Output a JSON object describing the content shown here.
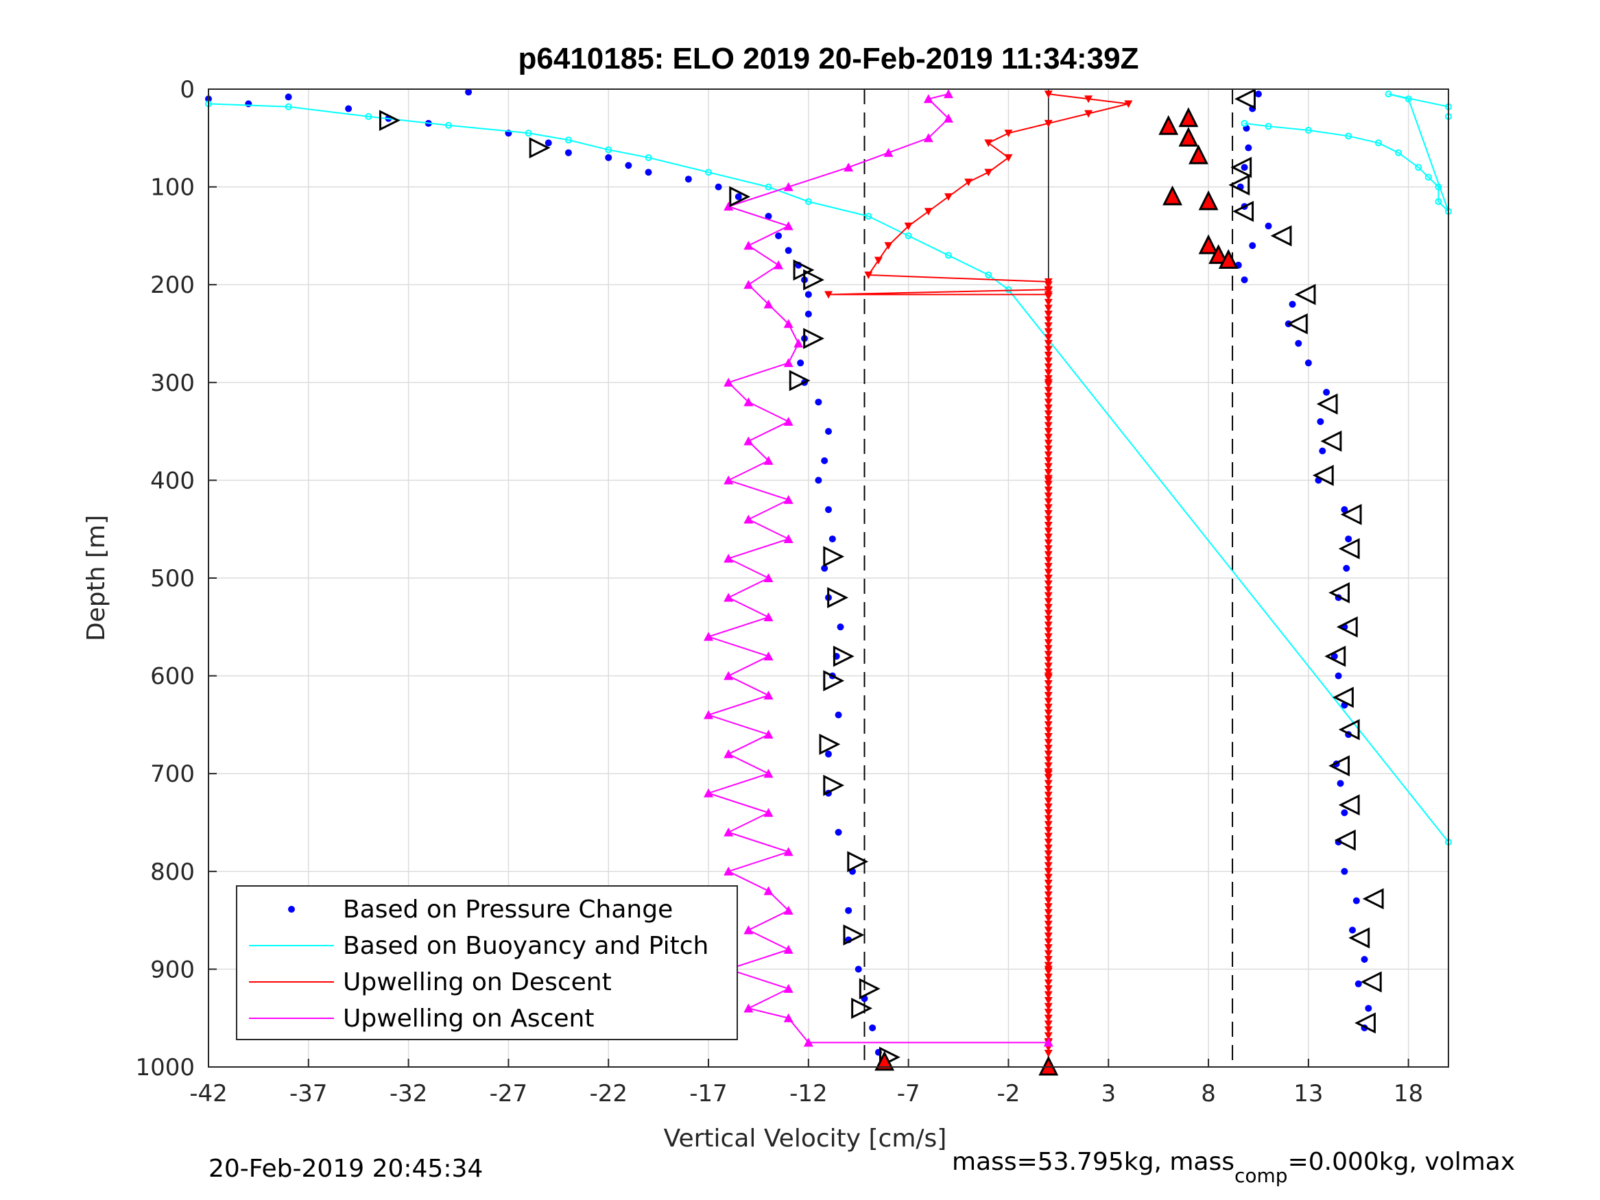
{
  "chart_data": {
    "type": "scatter",
    "title": "p6410185: ELO 2019 20-Feb-2019 11:34:39Z",
    "xlabel": "Vertical Velocity [cm/s]",
    "ylabel": "Depth [m]",
    "xlim": [
      -42,
      20
    ],
    "ylim": [
      0,
      1000
    ],
    "y_reversed": true,
    "grid": true,
    "xticks": [
      "-42",
      "-37",
      "-32",
      "-27",
      "-22",
      "-17",
      "-12",
      "-7",
      "-2",
      "3",
      "8",
      "13",
      "18"
    ],
    "yticks": [
      "0",
      "100",
      "200",
      "300",
      "400",
      "500",
      "600",
      "700",
      "800",
      "900",
      "1000"
    ],
    "legend_position": "bottom-left",
    "legend": [
      {
        "label": "Based on Pressure Change",
        "color": "#0000ff",
        "style": "dot"
      },
      {
        "label": "Based on Buoyancy and Pitch",
        "color": "#00ffff",
        "style": "line"
      },
      {
        "label": "Upwelling on Descent",
        "color": "#ff0000",
        "style": "line"
      },
      {
        "label": "Upwelling on Ascent",
        "color": "#ff00ff",
        "style": "line"
      }
    ],
    "reference_lines": {
      "vertical_solid_x": 0,
      "vertical_dashed_x": [
        -9.2,
        9.2
      ]
    },
    "series": [
      {
        "name": "Based on Pressure Change",
        "color": "#0000ff",
        "role": "descent",
        "points": [
          [
            -42,
            10
          ],
          [
            -40,
            15
          ],
          [
            -38,
            8
          ],
          [
            -35,
            20
          ],
          [
            -33,
            30
          ],
          [
            -31,
            35
          ],
          [
            -29,
            3
          ],
          [
            -27,
            45
          ],
          [
            -25,
            55
          ],
          [
            -24,
            65
          ],
          [
            -22,
            70
          ],
          [
            -21,
            78
          ],
          [
            -20,
            85
          ],
          [
            -18,
            92
          ],
          [
            -16.5,
            100
          ],
          [
            -15.5,
            110
          ],
          [
            -14,
            130
          ],
          [
            -13.5,
            150
          ],
          [
            -13,
            165
          ],
          [
            -12.5,
            180
          ],
          [
            -12.2,
            195
          ],
          [
            -12,
            210
          ],
          [
            -12,
            230
          ],
          [
            -12.2,
            255
          ],
          [
            -12.4,
            280
          ],
          [
            -12.2,
            300
          ],
          [
            -11.5,
            320
          ],
          [
            -11,
            350
          ],
          [
            -11.2,
            380
          ],
          [
            -11.5,
            400
          ],
          [
            -11,
            430
          ],
          [
            -10.8,
            460
          ],
          [
            -11.2,
            490
          ],
          [
            -11,
            520
          ],
          [
            -10.4,
            550
          ],
          [
            -10.6,
            580
          ],
          [
            -10.8,
            600
          ],
          [
            -10.5,
            640
          ],
          [
            -11,
            680
          ],
          [
            -11,
            720
          ],
          [
            -10.5,
            760
          ],
          [
            -9.8,
            800
          ],
          [
            -10,
            840
          ],
          [
            -10,
            870
          ],
          [
            -9.5,
            900
          ],
          [
            -9.2,
            930
          ],
          [
            -8.8,
            960
          ],
          [
            -8.5,
            985
          ],
          [
            -8.2,
            995
          ]
        ]
      },
      {
        "name": "Based on Pressure Change",
        "color": "#0000ff",
        "role": "ascent",
        "points": [
          [
            15.8,
            960
          ],
          [
            16,
            940
          ],
          [
            15.5,
            915
          ],
          [
            15.8,
            890
          ],
          [
            15.2,
            860
          ],
          [
            15.4,
            830
          ],
          [
            14.8,
            800
          ],
          [
            14.5,
            770
          ],
          [
            14.8,
            740
          ],
          [
            14.6,
            710
          ],
          [
            14.4,
            690
          ],
          [
            15,
            660
          ],
          [
            14.8,
            630
          ],
          [
            14.5,
            600
          ],
          [
            14.3,
            580
          ],
          [
            14.8,
            550
          ],
          [
            14.5,
            520
          ],
          [
            14.9,
            490
          ],
          [
            15,
            460
          ],
          [
            14.8,
            430
          ],
          [
            13.5,
            400
          ],
          [
            13.7,
            370
          ],
          [
            13.6,
            340
          ],
          [
            13.9,
            310
          ],
          [
            13,
            280
          ],
          [
            12.5,
            260
          ],
          [
            12,
            240
          ],
          [
            12.2,
            220
          ],
          [
            9.8,
            195
          ],
          [
            9.5,
            180
          ],
          [
            10.2,
            160
          ],
          [
            11,
            140
          ],
          [
            9.8,
            120
          ],
          [
            9.6,
            100
          ],
          [
            9.8,
            80
          ],
          [
            10,
            60
          ],
          [
            9.9,
            40
          ],
          [
            10.2,
            20
          ],
          [
            10.5,
            5
          ]
        ]
      },
      {
        "name": "Based on Buoyancy and Pitch",
        "color": "#00ffff",
        "role": "descent",
        "points": [
          [
            -42,
            15
          ],
          [
            -38,
            18
          ],
          [
            -34,
            28
          ],
          [
            -30,
            37
          ],
          [
            -26,
            45
          ],
          [
            -24,
            52
          ],
          [
            -22,
            62
          ],
          [
            -20,
            70
          ],
          [
            -17,
            85
          ],
          [
            -14,
            100
          ],
          [
            -12,
            115
          ],
          [
            -9,
            130
          ],
          [
            -7,
            150
          ],
          [
            -5,
            170
          ],
          [
            -3,
            190
          ],
          [
            -2,
            205
          ],
          [
            20,
            770
          ]
        ]
      },
      {
        "name": "Based on Buoyancy and Pitch",
        "color": "#00ffff",
        "role": "ascent",
        "points": [
          [
            9.8,
            35
          ],
          [
            11,
            38
          ],
          [
            13,
            42
          ],
          [
            15,
            48
          ],
          [
            16.5,
            55
          ],
          [
            17.5,
            65
          ],
          [
            18.5,
            80
          ],
          [
            19,
            90
          ],
          [
            19.5,
            100
          ],
          [
            19.5,
            115
          ],
          [
            20,
            125
          ],
          [
            18,
            10
          ],
          [
            17,
            5
          ],
          [
            20,
            18
          ],
          [
            20,
            28
          ]
        ]
      },
      {
        "name": "Upwelling on Descent",
        "color": "#ff0000",
        "points": [
          [
            0,
            5
          ],
          [
            2,
            10
          ],
          [
            4,
            15
          ],
          [
            2,
            25
          ],
          [
            0,
            35
          ],
          [
            -2,
            45
          ],
          [
            -3,
            55
          ],
          [
            -2,
            70
          ],
          [
            -3,
            85
          ],
          [
            -4,
            95
          ],
          [
            -5,
            110
          ],
          [
            -6,
            125
          ],
          [
            -7,
            140
          ],
          [
            -8,
            160
          ],
          [
            -8.5,
            175
          ],
          [
            -9,
            190
          ],
          [
            0,
            197
          ],
          [
            0,
            205
          ],
          [
            -11,
            210
          ],
          [
            0,
            210
          ],
          [
            0,
            300
          ],
          [
            0,
            400
          ],
          [
            0,
            500
          ],
          [
            0,
            600
          ],
          [
            0,
            700
          ],
          [
            0,
            800
          ],
          [
            0,
            900
          ],
          [
            0,
            975
          ],
          [
            0,
            1000
          ]
        ]
      },
      {
        "name": "Upwelling on Ascent",
        "color": "#ff00ff",
        "points": [
          [
            0,
            975
          ],
          [
            -12,
            975
          ],
          [
            -13,
            950
          ],
          [
            -15,
            940
          ],
          [
            -13,
            920
          ],
          [
            -16,
            900
          ],
          [
            -13,
            880
          ],
          [
            -15,
            860
          ],
          [
            -13,
            840
          ],
          [
            -14,
            820
          ],
          [
            -16,
            800
          ],
          [
            -13,
            780
          ],
          [
            -16,
            760
          ],
          [
            -14,
            740
          ],
          [
            -17,
            720
          ],
          [
            -14,
            700
          ],
          [
            -16,
            680
          ],
          [
            -14,
            660
          ],
          [
            -17,
            640
          ],
          [
            -14,
            620
          ],
          [
            -16,
            600
          ],
          [
            -14,
            580
          ],
          [
            -17,
            560
          ],
          [
            -14,
            540
          ],
          [
            -16,
            520
          ],
          [
            -14,
            500
          ],
          [
            -16,
            480
          ],
          [
            -13,
            460
          ],
          [
            -15,
            440
          ],
          [
            -13,
            420
          ],
          [
            -16,
            400
          ],
          [
            -14,
            380
          ],
          [
            -15,
            360
          ],
          [
            -13,
            340
          ],
          [
            -15,
            320
          ],
          [
            -16,
            300
          ],
          [
            -13,
            280
          ],
          [
            -12.5,
            260
          ],
          [
            -13,
            240
          ],
          [
            -14,
            220
          ],
          [
            -15,
            200
          ],
          [
            -13.5,
            180
          ],
          [
            -15,
            160
          ],
          [
            -13,
            140
          ],
          [
            -16,
            120
          ],
          [
            -13,
            100
          ],
          [
            -10,
            80
          ],
          [
            -8,
            65
          ],
          [
            -6,
            50
          ],
          [
            -5,
            30
          ],
          [
            -6,
            10
          ],
          [
            -5,
            5
          ]
        ]
      }
    ],
    "markers": {
      "descent_triangles_right": [
        [
          -33,
          32
        ],
        [
          -25.5,
          60
        ],
        [
          -15.5,
          110
        ],
        [
          -12.3,
          185
        ],
        [
          -11.8,
          195
        ],
        [
          -11.8,
          255
        ],
        [
          -12.5,
          298
        ],
        [
          -10.8,
          478
        ],
        [
          -10.6,
          520
        ],
        [
          -10.3,
          580
        ],
        [
          -10.8,
          605
        ],
        [
          -11,
          670
        ],
        [
          -10.8,
          712
        ],
        [
          -9.6,
          790
        ],
        [
          -9.8,
          865
        ],
        [
          -9,
          920
        ],
        [
          -9.4,
          940
        ],
        [
          -8,
          990
        ]
      ],
      "ascent_triangles_left": [
        [
          15.9,
          955
        ],
        [
          16.2,
          913
        ],
        [
          15.6,
          868
        ],
        [
          16.3,
          828
        ],
        [
          14.9,
          768
        ],
        [
          15.1,
          732
        ],
        [
          14.6,
          692
        ],
        [
          15.1,
          655
        ],
        [
          14.8,
          622
        ],
        [
          14.4,
          580
        ],
        [
          15,
          550
        ],
        [
          14.6,
          515
        ],
        [
          15.1,
          470
        ],
        [
          15.2,
          435
        ],
        [
          13.8,
          395
        ],
        [
          14.2,
          360
        ],
        [
          14,
          322
        ],
        [
          12.5,
          240
        ],
        [
          12.9,
          210
        ],
        [
          11.7,
          150
        ],
        [
          9.8,
          125
        ],
        [
          9.6,
          98
        ],
        [
          9.7,
          80
        ],
        [
          9.9,
          10
        ]
      ],
      "red_filled_triangles": [
        [
          7,
          30
        ],
        [
          6,
          38
        ],
        [
          7,
          50
        ],
        [
          7.5,
          68
        ],
        [
          6.2,
          110
        ],
        [
          8,
          115
        ],
        [
          8,
          160
        ],
        [
          8.5,
          170
        ],
        [
          9,
          175
        ],
        [
          0,
          1000
        ],
        [
          -8.2,
          995
        ]
      ]
    }
  },
  "footer": {
    "timestamp": "20-Feb-2019 20:45:34",
    "mass_text_1": "mass=53.795kg, mass",
    "mass_sub": "comp",
    "mass_text_2": "=0.000kg, volmax"
  }
}
